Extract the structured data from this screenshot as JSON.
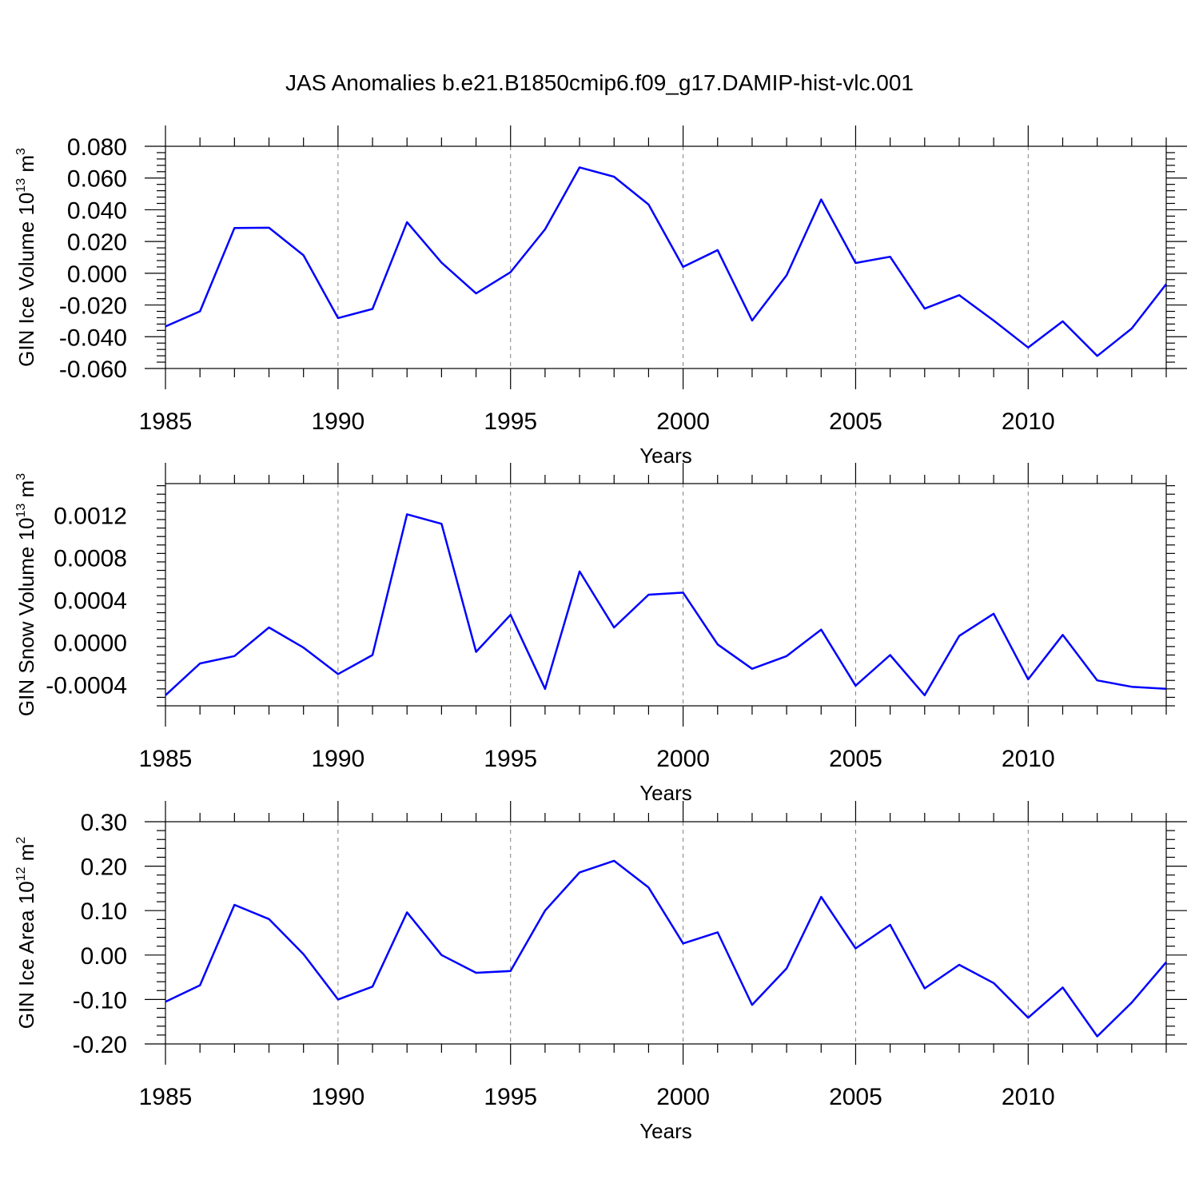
{
  "figure": {
    "title": "JAS Anomalies b.e21.B1850cmip6.f09_g17.DAMIP-hist-vlc.001",
    "line_color": "#0000ff",
    "grid_color": "#808080"
  },
  "chart_data": [
    {
      "type": "line",
      "title": "",
      "ylabel": "GIN Ice Volume 10",
      "ylabel_exp": "13",
      "ylabel_unit": " m",
      "ylabel_unit_exp": "3",
      "xlabel": "Years",
      "xlim": [
        1985,
        2014
      ],
      "ylim": [
        -0.06,
        0.08
      ],
      "yticks": [
        -0.06,
        -0.04,
        -0.02,
        0.0,
        0.02,
        0.04,
        0.06,
        0.08
      ],
      "ytick_labels": [
        "-0.060",
        "-0.040",
        "-0.020",
        "0.000",
        "0.020",
        "0.040",
        "0.060",
        "0.080"
      ],
      "xticks": [
        1985,
        1990,
        1995,
        2000,
        2005,
        2010
      ],
      "xtick_labels": [
        "1985",
        "1990",
        "1995",
        "2000",
        "2005",
        "2010"
      ],
      "x": [
        1985,
        1986,
        1987,
        1988,
        1989,
        1990,
        1991,
        1992,
        1993,
        1994,
        1995,
        1996,
        1997,
        1998,
        1999,
        2000,
        2001,
        2002,
        2003,
        2004,
        2005,
        2006,
        2007,
        2008,
        2009,
        2010,
        2011,
        2012,
        2013,
        2014
      ],
      "y": [
        -0.0335,
        -0.024,
        0.0285,
        0.0287,
        0.0113,
        -0.0282,
        -0.0225,
        0.0322,
        0.0067,
        -0.0127,
        0.0007,
        0.0277,
        0.0667,
        0.0608,
        0.0433,
        0.004,
        0.0146,
        -0.0298,
        -0.0013,
        0.0465,
        0.0065,
        0.0104,
        -0.0223,
        -0.0138,
        -0.0298,
        -0.0468,
        -0.0303,
        -0.0521,
        -0.0348,
        -0.0068
      ]
    },
    {
      "type": "line",
      "title": "",
      "ylabel": "GIN Snow Volume 10",
      "ylabel_exp": "13",
      "ylabel_unit": " m",
      "ylabel_unit_exp": "3",
      "xlabel": "Years",
      "xlim": [
        1985,
        2014
      ],
      "ylim": [
        -0.0006,
        0.0015
      ],
      "yticks": [
        -0.0004,
        0.0,
        0.0004,
        0.0008,
        0.0012
      ],
      "ytick_labels": [
        "-0.0004",
        "0.0000",
        "0.0004",
        "0.0008",
        "0.0012"
      ],
      "xticks": [
        1985,
        1990,
        1995,
        2000,
        2005,
        2010
      ],
      "xtick_labels": [
        "1985",
        "1990",
        "1995",
        "2000",
        "2005",
        "2010"
      ],
      "x": [
        1985,
        1986,
        1987,
        1988,
        1989,
        1990,
        1991,
        1992,
        1993,
        1994,
        1995,
        1996,
        1997,
        1998,
        1999,
        2000,
        2001,
        2002,
        2003,
        2004,
        2005,
        2006,
        2007,
        2008,
        2009,
        2010,
        2011,
        2012,
        2013,
        2014
      ],
      "y": [
        -0.0005,
        -0.0002,
        -0.00013,
        0.00014,
        -5e-05,
        -0.0003,
        -0.00012,
        0.00121,
        0.00112,
        -9e-05,
        0.00026,
        -0.00044,
        0.00067,
        0.00014,
        0.00045,
        0.00047,
        -2e-05,
        -0.00025,
        -0.00013,
        0.00012,
        -0.00041,
        -0.00012,
        -0.0005,
        6e-05,
        0.00027,
        -0.00035,
        7e-05,
        -0.00036,
        -0.00042,
        -0.00044
      ]
    },
    {
      "type": "line",
      "title": "",
      "ylabel": "GIN Ice Area 10",
      "ylabel_exp": "12",
      "ylabel_unit": " m",
      "ylabel_unit_exp": "2",
      "xlabel": "Years",
      "xlim": [
        1985,
        2014
      ],
      "ylim": [
        -0.2,
        0.3
      ],
      "yticks": [
        -0.2,
        -0.1,
        0.0,
        0.1,
        0.2,
        0.3
      ],
      "ytick_labels": [
        "-0.20",
        "-0.10",
        "0.00",
        "0.10",
        "0.20",
        "0.30"
      ],
      "xticks": [
        1985,
        1990,
        1995,
        2000,
        2005,
        2010
      ],
      "xtick_labels": [
        "1985",
        "1990",
        "1995",
        "2000",
        "2005",
        "2010"
      ],
      "x": [
        1985,
        1986,
        1987,
        1988,
        1989,
        1990,
        1991,
        1992,
        1993,
        1994,
        1995,
        1996,
        1997,
        1998,
        1999,
        2000,
        2001,
        2002,
        2003,
        2004,
        2005,
        2006,
        2007,
        2008,
        2009,
        2010,
        2011,
        2012,
        2013,
        2014
      ],
      "y": [
        -0.105,
        -0.068,
        0.113,
        0.081,
        0.002,
        -0.1,
        -0.071,
        0.096,
        0.0,
        -0.04,
        -0.036,
        0.1,
        0.186,
        0.212,
        0.152,
        0.026,
        0.051,
        -0.112,
        -0.03,
        0.131,
        0.015,
        0.068,
        -0.075,
        -0.022,
        -0.063,
        -0.141,
        -0.073,
        -0.183,
        -0.107,
        -0.016
      ]
    }
  ]
}
